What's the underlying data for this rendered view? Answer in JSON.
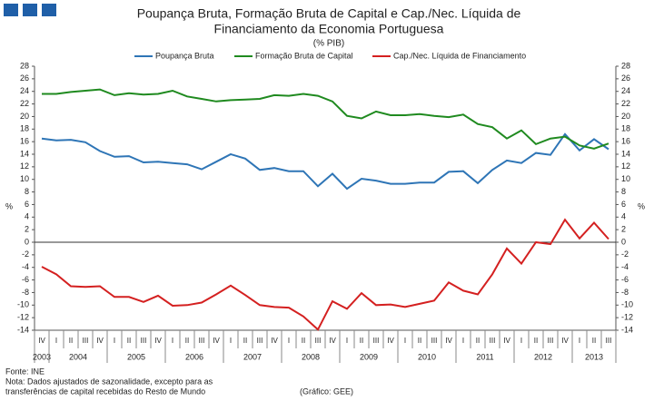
{
  "chart_data": {
    "type": "line",
    "title": [
      "Poupança Bruta, Formação Bruta de Capital e Cap./Nec. Líquida de",
      "Financiamento da Economia Portuguesa"
    ],
    "subtitle": "(% PIB)",
    "ylabel": "%",
    "y2label": "%",
    "categories": [
      "IV",
      "I",
      "II",
      "III",
      "IV",
      "I",
      "II",
      "III",
      "IV",
      "I",
      "II",
      "III",
      "IV",
      "I",
      "II",
      "III",
      "IV",
      "I",
      "II",
      "III",
      "IV",
      "I",
      "II",
      "III",
      "IV",
      "I",
      "II",
      "III",
      "IV",
      "I",
      "II",
      "III",
      "IV",
      "I",
      "II",
      "III",
      "IV",
      "I",
      "II",
      "III"
    ],
    "year_groups": [
      {
        "label": "2003",
        "quarters": 1
      },
      {
        "label": "2004",
        "quarters": 4
      },
      {
        "label": "2005",
        "quarters": 4
      },
      {
        "label": "2006",
        "quarters": 4
      },
      {
        "label": "2007",
        "quarters": 4
      },
      {
        "label": "2008",
        "quarters": 4
      },
      {
        "label": "2009",
        "quarters": 4
      },
      {
        "label": "2010",
        "quarters": 4
      },
      {
        "label": "2011",
        "quarters": 4
      },
      {
        "label": "2012",
        "quarters": 4
      },
      {
        "label": "2013",
        "quarters": 3
      }
    ],
    "series": [
      {
        "name": "Poupança Bruta",
        "color": "#2e75b6",
        "values": [
          16.5,
          16.2,
          16.3,
          15.9,
          14.5,
          13.6,
          13.7,
          12.7,
          12.8,
          12.6,
          12.4,
          11.6,
          12.8,
          14.0,
          13.3,
          11.5,
          11.8,
          11.3,
          11.3,
          8.9,
          10.9,
          8.5,
          10.1,
          9.8,
          9.3,
          9.3,
          9.5,
          9.5,
          11.2,
          11.3,
          9.4,
          11.5,
          13.0,
          12.6,
          14.2,
          13.9,
          17.2,
          14.6,
          16.4,
          14.8
        ]
      },
      {
        "name": "Formação Bruta de Capital",
        "color": "#1f8a1f",
        "values": [
          23.6,
          23.6,
          23.9,
          24.1,
          24.3,
          23.4,
          23.7,
          23.5,
          23.6,
          24.1,
          23.2,
          22.8,
          22.4,
          22.6,
          22.7,
          22.8,
          23.4,
          23.3,
          23.6,
          23.3,
          22.4,
          20.1,
          19.7,
          20.8,
          20.2,
          20.2,
          20.4,
          20.1,
          19.9,
          20.3,
          18.8,
          18.3,
          16.5,
          17.8,
          15.6,
          16.5,
          16.8,
          15.4,
          14.9,
          15.7
        ]
      },
      {
        "name": "Cap./Nec. Líquida de Financiamento",
        "color": "#d42020",
        "values": [
          -3.9,
          -5.1,
          -7.0,
          -7.1,
          -7.0,
          -8.7,
          -8.7,
          -9.5,
          -8.5,
          -10.1,
          -10.0,
          -9.6,
          -8.3,
          -6.9,
          -8.4,
          -10.0,
          -10.3,
          -10.4,
          -11.8,
          -13.9,
          -9.4,
          -10.6,
          -8.1,
          -10.0,
          -9.9,
          -10.3,
          -9.8,
          -9.3,
          -6.4,
          -7.7,
          -8.3,
          -5.1,
          -1.0,
          -3.4,
          0.0,
          -0.3,
          3.6,
          0.6,
          3.1,
          0.5
        ]
      }
    ],
    "ylim": [
      -14,
      28
    ],
    "yticks": [
      28,
      26,
      24,
      22,
      20,
      18,
      16,
      14,
      12,
      10,
      8,
      6,
      4,
      2,
      0,
      -2,
      -4,
      -6,
      -8,
      -10,
      -12,
      -14
    ],
    "y2lim": [
      -14,
      28
    ],
    "y2ticks": [
      28,
      26,
      24,
      22,
      20,
      18,
      16,
      14,
      12,
      10,
      8,
      6,
      4,
      2,
      0,
      -2,
      -4,
      -6,
      -8,
      -10,
      -12,
      -14
    ],
    "notes": [
      "Fonte: INE",
      "Nota: Dados ajustados de sazonalidade, excepto para as",
      "transferências de capital recebidas do Resto de Mundo"
    ],
    "credit": "(Gráfico: GEE)"
  }
}
